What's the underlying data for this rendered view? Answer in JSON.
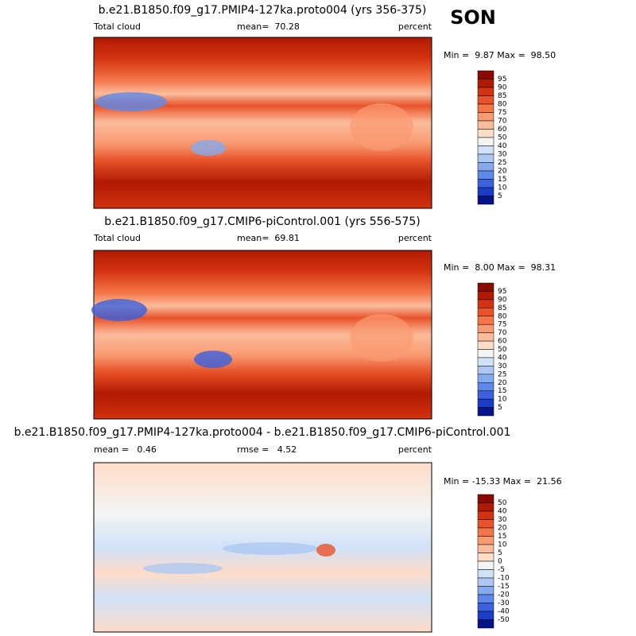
{
  "season": "SON",
  "panels": [
    {
      "title": "b.e21.B1850.f09_g17.PMIP4-127ka.proto004 (yrs 356-375)",
      "left_label": "Total cloud",
      "center_label": "mean=  70.28",
      "right_label": "percent",
      "min_max": "Min =  9.87 Max =  98.50",
      "colorbar": {
        "labels": [
          95,
          90,
          85,
          80,
          75,
          70,
          60,
          50,
          40,
          30,
          25,
          20,
          15,
          10,
          5
        ],
        "colors": [
          "#8a0a00",
          "#b01a00",
          "#d23210",
          "#e8532a",
          "#f47548",
          "#f99a70",
          "#fbbc9c",
          "#fddcc8",
          "#f4f4f4",
          "#d0e2f8",
          "#acc8f2",
          "#86aaee",
          "#5e88ea",
          "#3a62e0",
          "#1a3cc8",
          "#06148a"
        ]
      }
    },
    {
      "title": "b.e21.B1850.f09_g17.CMIP6-piControl.001 (yrs 556-575)",
      "left_label": "Total cloud",
      "center_label": "mean=  69.81",
      "right_label": "percent",
      "min_max": "Min =  8.00 Max =  98.31",
      "colorbar": {
        "labels": [
          95,
          90,
          85,
          80,
          75,
          70,
          60,
          50,
          40,
          30,
          25,
          20,
          15,
          10,
          5
        ],
        "colors": [
          "#8a0a00",
          "#b01a00",
          "#d23210",
          "#e8532a",
          "#f47548",
          "#f99a70",
          "#fbbc9c",
          "#fddcc8",
          "#f4f4f4",
          "#d0e2f8",
          "#acc8f2",
          "#86aaee",
          "#5e88ea",
          "#3a62e0",
          "#1a3cc8",
          "#06148a"
        ]
      }
    },
    {
      "title": "b.e21.B1850.f09_g17.PMIP4-127ka.proto004 - b.e21.B1850.f09_g17.CMIP6-piControl.001",
      "left_label": "mean =   0.46",
      "center_label": "rmse =   4.52",
      "right_label": "percent",
      "min_max": "Min = -15.33 Max =  21.56",
      "colorbar": {
        "labels": [
          50,
          40,
          30,
          20,
          15,
          10,
          5,
          0,
          -5,
          -10,
          -15,
          -20,
          -30,
          -40,
          -50
        ],
        "colors": [
          "#8a0a00",
          "#b01a00",
          "#d23210",
          "#e8532a",
          "#f47548",
          "#f99a70",
          "#fbbc9c",
          "#fddcc8",
          "#f4f4f4",
          "#d0e2f8",
          "#acc8f2",
          "#86aaee",
          "#5e88ea",
          "#3a62e0",
          "#1a3cc8",
          "#06148a"
        ]
      }
    }
  ]
}
